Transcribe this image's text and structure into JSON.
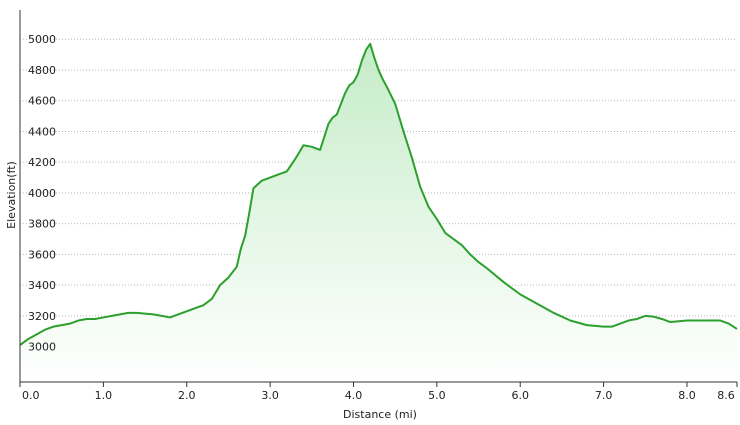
{
  "chart_data": {
    "type": "area",
    "title": "",
    "xlabel": "Distance  (mi)",
    "ylabel": "Elevation(ft)",
    "x_ticks": [
      {
        "value": 0.0,
        "label": "0.0"
      },
      {
        "value": 1.0,
        "label": "1.0"
      },
      {
        "value": 2.0,
        "label": "2.0"
      },
      {
        "value": 3.0,
        "label": "3.0"
      },
      {
        "value": 4.0,
        "label": "4.0"
      },
      {
        "value": 5.0,
        "label": "5.0"
      },
      {
        "value": 6.0,
        "label": "6.0"
      },
      {
        "value": 7.0,
        "label": "7.0"
      },
      {
        "value": 8.0,
        "label": "8.0"
      },
      {
        "value": 8.6,
        "label": "8.6"
      }
    ],
    "y_ticks": [
      3000,
      3200,
      3400,
      3600,
      3800,
      4000,
      4200,
      4400,
      4600,
      4800,
      5000
    ],
    "xlim": [
      0,
      8.6
    ],
    "ylim": [
      2770,
      5190
    ],
    "grid": true,
    "colors": {
      "line": "#2ca02c",
      "fill_top": "#c5ecc8",
      "fill_bottom": "#ffffff",
      "grid": "#bbbbbb"
    },
    "series": [
      {
        "x": [
          0.0,
          0.1,
          0.2,
          0.3,
          0.4,
          0.5,
          0.6,
          0.7,
          0.8,
          0.9,
          1.0,
          1.1,
          1.2,
          1.3,
          1.4,
          1.5,
          1.6,
          1.7,
          1.8,
          1.9,
          2.0,
          2.1,
          2.2,
          2.3,
          2.4,
          2.5,
          2.6,
          2.65,
          2.7,
          2.75,
          2.8,
          2.9,
          3.0,
          3.1,
          3.2,
          3.25,
          3.3,
          3.4,
          3.5,
          3.6,
          3.7,
          3.75,
          3.8,
          3.9,
          3.95,
          4.0,
          4.05,
          4.1,
          4.15,
          4.2,
          4.25,
          4.3,
          4.35,
          4.4,
          4.5,
          4.6,
          4.7,
          4.8,
          4.9,
          5.0,
          5.1,
          5.2,
          5.3,
          5.4,
          5.5,
          5.6,
          5.8,
          6.0,
          6.2,
          6.4,
          6.6,
          6.8,
          7.0,
          7.1,
          7.2,
          7.3,
          7.4,
          7.5,
          7.6,
          7.7,
          7.8,
          8.0,
          8.2,
          8.4,
          8.5,
          8.6
        ],
        "y": [
          3010,
          3050,
          3080,
          3110,
          3130,
          3140,
          3150,
          3170,
          3180,
          3180,
          3190,
          3200,
          3210,
          3220,
          3220,
          3215,
          3210,
          3200,
          3190,
          3210,
          3230,
          3250,
          3270,
          3310,
          3400,
          3450,
          3520,
          3640,
          3720,
          3870,
          4030,
          4080,
          4100,
          4120,
          4140,
          4180,
          4220,
          4310,
          4300,
          4280,
          4450,
          4490,
          4510,
          4650,
          4700,
          4720,
          4770,
          4860,
          4930,
          4970,
          4880,
          4800,
          4740,
          4690,
          4580,
          4400,
          4230,
          4040,
          3910,
          3830,
          3740,
          3700,
          3660,
          3600,
          3550,
          3510,
          3420,
          3340,
          3280,
          3220,
          3170,
          3140,
          3130,
          3130,
          3150,
          3170,
          3180,
          3200,
          3195,
          3180,
          3160,
          3170,
          3170,
          3170,
          3150,
          3115
        ]
      }
    ]
  }
}
